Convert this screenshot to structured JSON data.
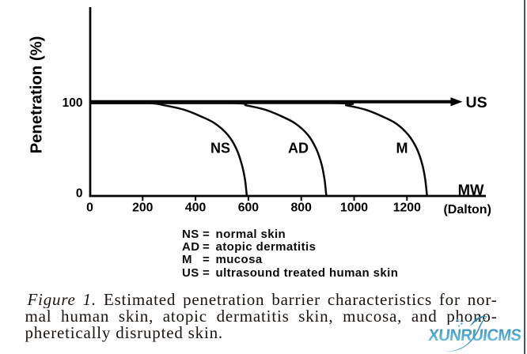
{
  "page": {
    "background": "#fefefe",
    "right_border_color": "#3d5a66"
  },
  "chart_data": {
    "type": "line",
    "xlabel": "MW",
    "xlabel_unit": "(Dalton)",
    "ylabel": "Penetration (%)",
    "x_ticks": [
      0,
      200,
      400,
      600,
      800,
      1000,
      1200
    ],
    "y_ticks": [
      0,
      100
    ],
    "xlim": [
      0,
      1500
    ],
    "ylim": [
      0,
      200
    ],
    "grid": false,
    "series": [
      {
        "name": "NS",
        "label": "NS",
        "label_at": [
          494,
          52
        ],
        "points": [
          [
            0,
            100
          ],
          [
            220,
            100
          ],
          [
            284,
            97.5
          ],
          [
            355,
            93
          ],
          [
            418,
            86
          ],
          [
            474,
            78
          ],
          [
            523,
            65.5
          ],
          [
            555,
            50.5
          ],
          [
            575,
            34
          ],
          [
            587,
            18
          ],
          [
            594,
            0
          ]
        ]
      },
      {
        "name": "AD",
        "label": "AD",
        "label_at": [
          789,
          52
        ],
        "points": [
          [
            0,
            100
          ],
          [
            531,
            100
          ],
          [
            593,
            97.5
          ],
          [
            662,
            93
          ],
          [
            724,
            86
          ],
          [
            778,
            78
          ],
          [
            826,
            65.5
          ],
          [
            857,
            50.5
          ],
          [
            877,
            34
          ],
          [
            888,
            18
          ],
          [
            895,
            0
          ]
        ]
      },
      {
        "name": "M",
        "label": "M",
        "label_at": [
          1181,
          52
        ],
        "points": [
          [
            0,
            100
          ],
          [
            910,
            100
          ],
          [
            972,
            97.5
          ],
          [
            1042,
            93
          ],
          [
            1104,
            86
          ],
          [
            1159,
            78
          ],
          [
            1206,
            65.5
          ],
          [
            1238,
            50.5
          ],
          [
            1258,
            34
          ],
          [
            1269,
            18
          ],
          [
            1276,
            0
          ]
        ]
      }
    ],
    "us_arrow": {
      "label": "US",
      "y_value": 100
    },
    "axis_color": "#000000",
    "curve_color": "#0a0a0a"
  },
  "legend": {
    "eq": "=",
    "items": [
      {
        "abbr": "NS",
        "desc": "normal skin"
      },
      {
        "abbr": "AD",
        "desc": "atopic dermatitis"
      },
      {
        "abbr": "M",
        "desc": "mucosa"
      },
      {
        "abbr": "US",
        "desc": "ultrasound treated human skin"
      }
    ]
  },
  "caption": {
    "figure_label": "Figure 1.",
    "line1_rest": " Estimated penetration barrier characteristics for nor-",
    "line2": "mal human skin, atopic dermatitis skin, mucosa, and phono-",
    "line3": "pheretically disrupted skin."
  },
  "watermark": {
    "text": "XUNRUICMS",
    "color_dark": "#2e86ae",
    "color_mid": "#4aa3cb",
    "color_swoosh": "#3590b8",
    "text_gradient": [
      "#3a93bd",
      "#56acd2",
      "#8ed2ec"
    ]
  }
}
